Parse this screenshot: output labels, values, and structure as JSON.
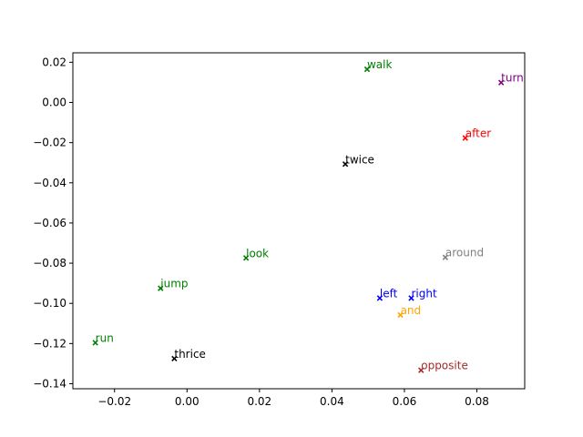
{
  "chart_data": {
    "type": "scatter",
    "marker": "x",
    "title": "",
    "xlabel": "",
    "ylabel": "",
    "xlim": [
      -0.0315,
      0.0932
    ],
    "ylim": [
      -0.1425,
      0.0247
    ],
    "xticks": [
      -0.02,
      0.0,
      0.02,
      0.04,
      0.06,
      0.08
    ],
    "xtick_labels": [
      "−0.02",
      "0.00",
      "0.02",
      "0.04",
      "0.06",
      "0.08"
    ],
    "yticks": [
      0.02,
      0.0,
      -0.02,
      -0.04,
      -0.06,
      -0.08,
      -0.1,
      -0.12,
      -0.14
    ],
    "ytick_labels": [
      "0.02",
      "0.00",
      "−0.02",
      "−0.04",
      "−0.06",
      "−0.08",
      "−0.10",
      "−0.12",
      "−0.14"
    ],
    "grid": false,
    "points": [
      {
        "label": "walk",
        "x": 0.0497,
        "y": 0.0165,
        "color": "#008000"
      },
      {
        "label": "turn",
        "x": 0.0867,
        "y": 0.0099,
        "color": "#800080"
      },
      {
        "label": "after",
        "x": 0.0768,
        "y": -0.0177,
        "color": "#ff0000"
      },
      {
        "label": "twice",
        "x": 0.0437,
        "y": -0.0307,
        "color": "#000000"
      },
      {
        "label": "look",
        "x": 0.0163,
        "y": -0.0774,
        "color": "#008000"
      },
      {
        "label": "around",
        "x": 0.0713,
        "y": -0.0771,
        "color": "#808080"
      },
      {
        "label": "jump",
        "x": -0.0073,
        "y": -0.0925,
        "color": "#008000"
      },
      {
        "label": "left",
        "x": 0.0532,
        "y": -0.0974,
        "color": "#0000ff"
      },
      {
        "label": "right",
        "x": 0.0619,
        "y": -0.0974,
        "color": "#0000ff"
      },
      {
        "label": "and",
        "x": 0.0589,
        "y": -0.1058,
        "color": "#ffa500"
      },
      {
        "label": "run",
        "x": -0.0253,
        "y": -0.1196,
        "color": "#008000"
      },
      {
        "label": "thrice",
        "x": -0.0035,
        "y": -0.1275,
        "color": "#000000"
      },
      {
        "label": "opposite",
        "x": 0.0646,
        "y": -0.1333,
        "color": "#a52a2a"
      }
    ]
  }
}
